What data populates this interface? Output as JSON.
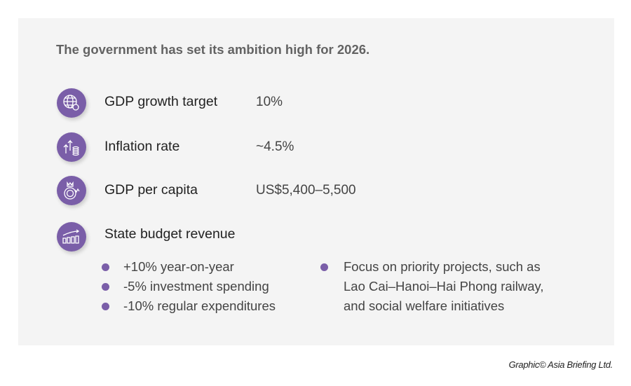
{
  "title": "The government has set its ambition high for 2026.",
  "accent": "#7a5ea8",
  "items": [
    {
      "icon": "globe-search-icon",
      "label": "GDP growth target",
      "value": "10%"
    },
    {
      "icon": "growth-coins-icon",
      "label": "Inflation rate",
      "value": "~4.5%"
    },
    {
      "icon": "money-bag-icon",
      "label": "GDP per capita",
      "value": "US$5,400–5,500"
    },
    {
      "icon": "bar-chart-trend-icon",
      "label": "State budget revenue",
      "value": ""
    }
  ],
  "bullets_left": [
    "+10% year-on-year",
    "-5% investment spending",
    "-10% regular expenditures"
  ],
  "bullets_right": [
    "Focus on priority projects, such as",
    "Lao Cai–Hanoi–Hai Phong railway,",
    "and social welfare initiatives"
  ],
  "credit": "Graphic© Asia Briefing Ltd."
}
